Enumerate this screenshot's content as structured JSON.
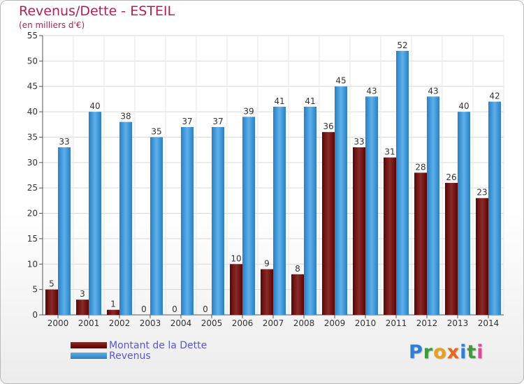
{
  "title": "Revenus/Dette - ESTEIL",
  "subtitle": "(en milliers d'€)",
  "logo_text": "Proxiti",
  "colors": {
    "dette": "#6b0f0f",
    "revenus": "#3b97dd",
    "title": "#b0205a",
    "legend_text": "#5555dd"
  },
  "legend": [
    {
      "label": "Montant de la Dette",
      "color_key": "dette"
    },
    {
      "label": "Revenus",
      "color_key": "revenus"
    }
  ],
  "chart_data": {
    "type": "bar",
    "categories": [
      "2000",
      "2001",
      "2002",
      "2003",
      "2004",
      "2005",
      "2006",
      "2007",
      "2008",
      "2009",
      "2010",
      "2011",
      "2012",
      "2013",
      "2014"
    ],
    "series": [
      {
        "name": "Montant de la Dette",
        "values": [
          5,
          3,
          1,
          0,
          0,
          0,
          10,
          9,
          8,
          36,
          33,
          31,
          28,
          26,
          23
        ]
      },
      {
        "name": "Revenus",
        "values": [
          33,
          40,
          38,
          35,
          37,
          37,
          39,
          41,
          41,
          45,
          43,
          52,
          43,
          40,
          42
        ]
      }
    ],
    "yticks": [
      0,
      5,
      10,
      15,
      20,
      25,
      30,
      35,
      40,
      45,
      50,
      55
    ],
    "ylim": [
      0,
      55
    ],
    "grid": true,
    "legend_position": "bottom-left"
  }
}
